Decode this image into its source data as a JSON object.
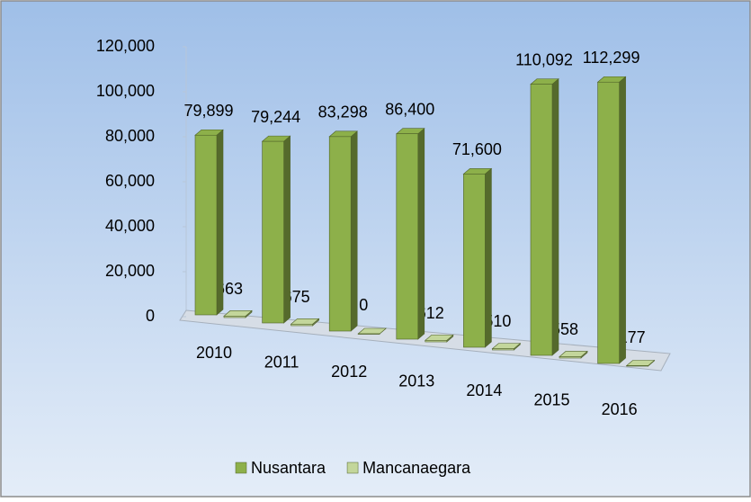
{
  "chart_data": {
    "type": "bar3d",
    "categories": [
      "2010",
      "2011",
      "2012",
      "2013",
      "2014",
      "2015",
      "2016"
    ],
    "series": [
      {
        "name": "Nusantara",
        "color": "#8db04a",
        "values": [
          79899,
          79244,
          83298,
          86400,
          71600,
          110092,
          112299
        ],
        "value_labels": [
          "79,899",
          "79,244",
          "83,298",
          "86,400",
          "71,600",
          "110,092",
          "112,299"
        ]
      },
      {
        "name": "Mancanaegara",
        "color": "#c3d69b",
        "values": [
          663,
          675,
          0,
          612,
          510,
          558,
          177
        ]
      }
    ],
    "ylim": [
      0,
      120000
    ],
    "yticks": [
      0,
      {
        "value": 20000,
        "label": "20,000"
      },
      {
        "value": 40000,
        "label": "40,000"
      },
      {
        "value": 60000,
        "label": "60,000"
      },
      {
        "value": 80000,
        "label": "80,000"
      },
      {
        "value": 100000,
        "label": "100,000"
      },
      {
        "value": 120000,
        "label": "120,000"
      }
    ],
    "legend": "bottom"
  }
}
